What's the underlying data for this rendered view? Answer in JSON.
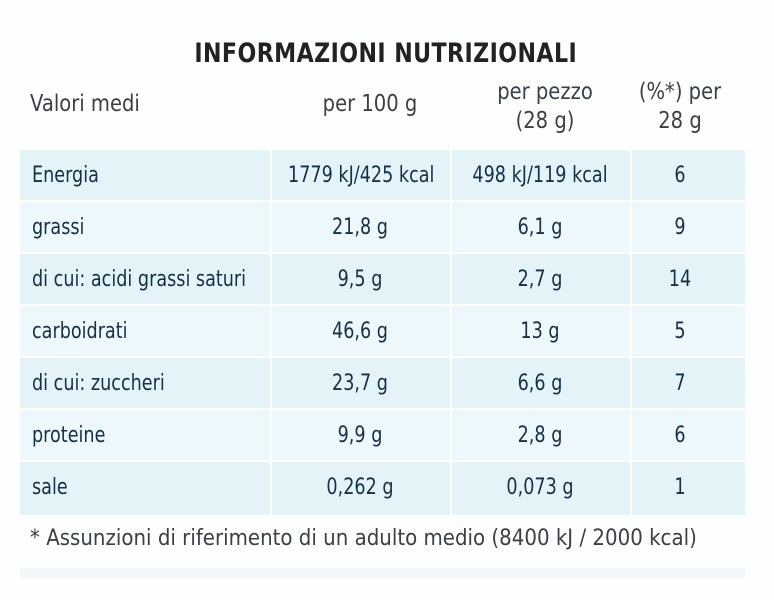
{
  "title": "INFORMAZIONI NUTRIZIONALI",
  "columns": {
    "label": "Valori medi",
    "per100": "per 100 g",
    "per_piece_line1": "per pezzo",
    "per_piece_line2": "(28 g)",
    "pct_line1": "(%*) per",
    "pct_line2": "28 g"
  },
  "rows": [
    {
      "label": "Energia",
      "per100": "1779 kJ/425 kcal",
      "per_piece": "498 kJ/119 kcal",
      "pct": "6"
    },
    {
      "label": "grassi",
      "per100": "21,8 g",
      "per_piece": "6,1 g",
      "pct": "9"
    },
    {
      "label": "di cui: acidi grassi saturi",
      "per100": "9,5 g",
      "per_piece": "2,7 g",
      "pct": "14"
    },
    {
      "label": "carboidrati",
      "per100": "46,6 g",
      "per_piece": "13 g",
      "pct": "5"
    },
    {
      "label": "di cui: zuccheri",
      "per100": "23,7 g",
      "per_piece": "6,6 g",
      "pct": "7"
    },
    {
      "label": "proteine",
      "per100": "9,9 g",
      "per_piece": "2,8 g",
      "pct": "6"
    },
    {
      "label": "sale",
      "per100": "0,262 g",
      "per_piece": "0,073 g",
      "pct": "1"
    }
  ],
  "footnote": "* Assunzioni di riferimento di un adulto medio (8400 kJ / 2000 kcal)",
  "colors": {
    "row_bg": "#e3f3f8",
    "text": "#16304a"
  }
}
